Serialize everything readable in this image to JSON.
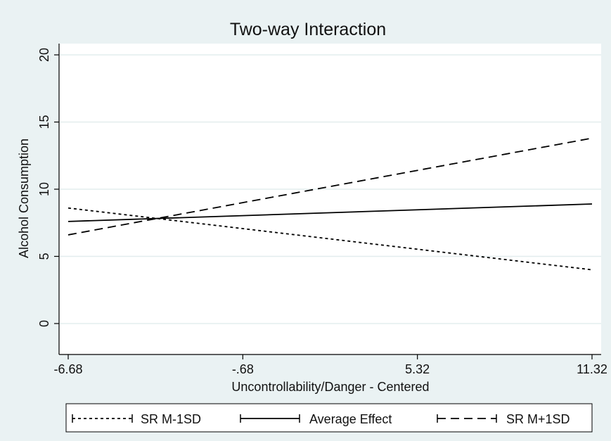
{
  "chart_data": {
    "type": "line",
    "title": "Two-way Interaction",
    "xlabel": "Uncontrollability/Danger - Centered",
    "ylabel": "Alcohol Consumption",
    "xlim": [
      -6.68,
      11.32
    ],
    "ylim": [
      -2.2,
      20.5
    ],
    "xticks": [
      {
        "value": -6.68,
        "label": "-6.68"
      },
      {
        "value": -0.68,
        "label": "-.68"
      },
      {
        "value": 5.32,
        "label": "5.32"
      },
      {
        "value": 11.32,
        "label": "11.32"
      }
    ],
    "yticks": [
      {
        "value": 0,
        "label": "0"
      },
      {
        "value": 5,
        "label": "5"
      },
      {
        "value": 10,
        "label": "10"
      },
      {
        "value": 15,
        "label": "15"
      },
      {
        "value": 20,
        "label": "20"
      }
    ],
    "grid": true,
    "legend_position": "bottom",
    "series": [
      {
        "name": "SR M-1SD",
        "style": "dotted",
        "x": [
          -6.68,
          11.32
        ],
        "y": [
          8.6,
          4.0
        ]
      },
      {
        "name": "Average Effect",
        "style": "solid",
        "x": [
          -6.68,
          11.32
        ],
        "y": [
          7.6,
          8.9
        ]
      },
      {
        "name": "SR M+1SD",
        "style": "dashed",
        "x": [
          -6.68,
          11.32
        ],
        "y": [
          6.6,
          13.8
        ]
      }
    ],
    "colors": {
      "background": "#eaf2f3",
      "plot_area": "#ffffff",
      "grid": "#e3edee",
      "line": "#000000"
    }
  }
}
